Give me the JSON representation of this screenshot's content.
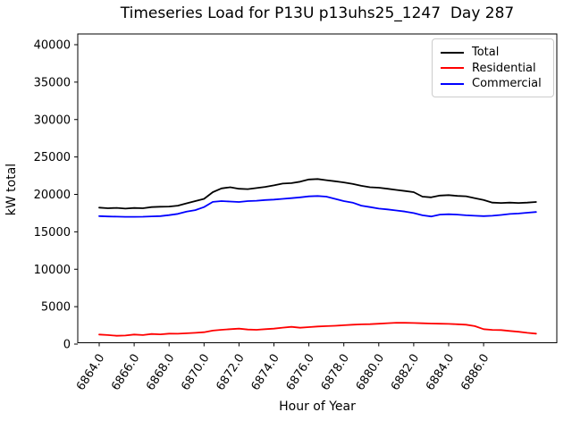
{
  "chart_data": {
    "type": "line",
    "title": "Timeseries Load for P13U p13uhs25_1247  Day 287",
    "xlabel": "Hour of Year",
    "ylabel": "kW total",
    "grid": false,
    "legend_position": "upper right",
    "xlim": [
      6862.8,
      6890.2
    ],
    "ylim": [
      0,
      41500
    ],
    "yticks": [
      {
        "value": 0,
        "label": "0"
      },
      {
        "value": 5000,
        "label": "5000"
      },
      {
        "value": 10000,
        "label": "10000"
      },
      {
        "value": 15000,
        "label": "15000"
      },
      {
        "value": 20000,
        "label": "20000"
      },
      {
        "value": 25000,
        "label": "25000"
      },
      {
        "value": 30000,
        "label": "30000"
      },
      {
        "value": 35000,
        "label": "35000"
      },
      {
        "value": 40000,
        "label": "40000"
      }
    ],
    "xticks": [
      {
        "value": 6864,
        "label": "6864.0"
      },
      {
        "value": 6866,
        "label": "6866.0"
      },
      {
        "value": 6868,
        "label": "6868.0"
      },
      {
        "value": 6870,
        "label": "6870.0"
      },
      {
        "value": 6872,
        "label": "6872.0"
      },
      {
        "value": 6874,
        "label": "6874.0"
      },
      {
        "value": 6876,
        "label": "6876.0"
      },
      {
        "value": 6878,
        "label": "6878.0"
      },
      {
        "value": 6880,
        "label": "6880.0"
      },
      {
        "value": 6882,
        "label": "6882.0"
      },
      {
        "value": 6884,
        "label": "6884.0"
      },
      {
        "value": 6886,
        "label": "6886.0"
      }
    ],
    "x": [
      6864,
      6864.5,
      6865,
      6865.5,
      6866,
      6866.5,
      6867,
      6867.5,
      6868,
      6868.5,
      6869,
      6869.5,
      6870,
      6870.5,
      6871,
      6871.5,
      6872,
      6872.5,
      6873,
      6873.5,
      6874,
      6874.5,
      6875,
      6875.5,
      6876,
      6876.5,
      6877,
      6877.5,
      6878,
      6878.5,
      6879,
      6879.5,
      6880,
      6880.5,
      6881,
      6881.5,
      6882,
      6882.5,
      6883,
      6883.5,
      6884,
      6884.5,
      6885,
      6885.5,
      6886,
      6886.5,
      6887,
      6887.5,
      6888,
      6888.5,
      6889
    ],
    "series": [
      {
        "name": "Total",
        "color": "#000000",
        "values": [
          18230,
          18150,
          18200,
          18100,
          18180,
          18150,
          18300,
          18350,
          18380,
          18500,
          18800,
          19100,
          19400,
          20300,
          20800,
          20950,
          20750,
          20700,
          20850,
          21000,
          21200,
          21450,
          21500,
          21700,
          22000,
          22050,
          21900,
          21750,
          21600,
          21400,
          21150,
          20950,
          20900,
          20750,
          20600,
          20450,
          20300,
          19700,
          19600,
          19850,
          19900,
          19800,
          19750,
          19500,
          19250,
          18900,
          18850,
          18900,
          18850,
          18900,
          18980
        ]
      },
      {
        "name": "Residential",
        "color": "#ff0000",
        "values": [
          1280,
          1200,
          1110,
          1150,
          1280,
          1200,
          1350,
          1300,
          1400,
          1380,
          1450,
          1500,
          1590,
          1800,
          1910,
          2000,
          2070,
          1950,
          1910,
          2000,
          2070,
          2200,
          2300,
          2180,
          2270,
          2350,
          2400,
          2450,
          2520,
          2590,
          2640,
          2660,
          2720,
          2800,
          2850,
          2840,
          2820,
          2780,
          2750,
          2720,
          2700,
          2650,
          2590,
          2400,
          2000,
          1900,
          1870,
          1750,
          1650,
          1500,
          1400
        ]
      },
      {
        "name": "Commercial",
        "color": "#0000ff",
        "values": [
          17100,
          17050,
          17030,
          17000,
          17000,
          17020,
          17060,
          17100,
          17230,
          17400,
          17700,
          17900,
          18300,
          19000,
          19100,
          19050,
          18990,
          19100,
          19150,
          19250,
          19310,
          19400,
          19500,
          19600,
          19740,
          19780,
          19700,
          19400,
          19100,
          18900,
          18500,
          18310,
          18100,
          17990,
          17850,
          17710,
          17500,
          17200,
          17050,
          17300,
          17350,
          17300,
          17200,
          17150,
          17100,
          17150,
          17250,
          17390,
          17450,
          17550,
          17650
        ]
      }
    ]
  }
}
